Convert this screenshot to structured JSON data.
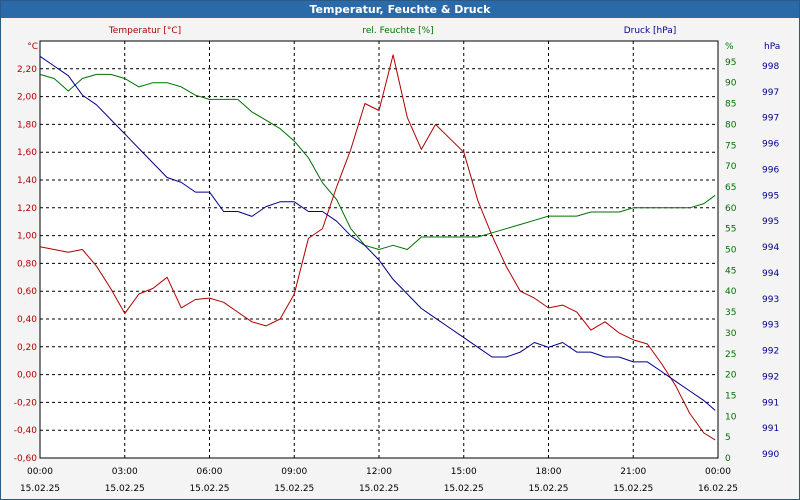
{
  "window": {
    "title": "Temperatur, Feuchte & Druck"
  },
  "colors": {
    "temperature": "#b00000",
    "humidity": "#007000",
    "pressure": "#00008c",
    "grid": "#000000",
    "background": "#ffffff"
  },
  "chart_data": {
    "type": "line",
    "title": "Temperatur, Feuchte & Druck",
    "grid": true,
    "x_tick_labels": [
      [
        "00:00",
        "15.02.25"
      ],
      [
        "03:00",
        "15.02.25"
      ],
      [
        "06:00",
        "15.02.25"
      ],
      [
        "09:00",
        "15.02.25"
      ],
      [
        "12:00",
        "15.02.25"
      ],
      [
        "15:00",
        "15.02.25"
      ],
      [
        "18:00",
        "15.02.25"
      ],
      [
        "21:00",
        "15.02.25"
      ],
      [
        "00:00",
        "16.02.25"
      ]
    ],
    "xlim": [
      "15.02.25 00:00",
      "16.02.25 00:00"
    ],
    "axes": {
      "left": {
        "label": "Temperatur [°C]",
        "unit": "°C",
        "ylim": [
          -0.6,
          2.4
        ],
        "ticks": [
          "2,20",
          "2,00",
          "1,80",
          "1,60",
          "1,40",
          "1,20",
          "1,00",
          "0,80",
          "0,60",
          "0,40",
          "0,20",
          "0,00",
          "-0,20",
          "-0,40",
          "-0,60"
        ]
      },
      "right1": {
        "label": "rel. Feuchte [%]",
        "unit": "%",
        "ylim": [
          0,
          100
        ],
        "ticks": [
          "95",
          "90",
          "85",
          "80",
          "75",
          "70",
          "65",
          "60",
          "55",
          "50",
          "45",
          "40",
          "35",
          "30",
          "25",
          "20",
          "15",
          "10",
          "5",
          "0"
        ]
      },
      "right2": {
        "label": "Druck [hPa]",
        "unit": "hPa",
        "ticks": [
          "998",
          "997",
          "997",
          "996",
          "996",
          "995",
          "995",
          "994",
          "994",
          "993",
          "993",
          "992",
          "992",
          "991",
          "991",
          "990"
        ]
      }
    },
    "x_hours": [
      0,
      0.5,
      1,
      1.5,
      2,
      2.5,
      3,
      3.5,
      4,
      4.5,
      5,
      5.5,
      6,
      6.5,
      7,
      7.5,
      8,
      8.5,
      9,
      9.5,
      10,
      10.5,
      11,
      11.5,
      12,
      12.5,
      13,
      13.5,
      14,
      14.5,
      15,
      15.5,
      16,
      16.5,
      17,
      17.5,
      18,
      18.5,
      19,
      19.5,
      20,
      20.5,
      21,
      21.5,
      22,
      22.5,
      23,
      23.5,
      23.9
    ],
    "series": [
      {
        "name": "Temperatur [°C]",
        "axis": "left",
        "values": [
          0.92,
          0.9,
          0.88,
          0.9,
          0.78,
          0.62,
          0.44,
          0.58,
          0.62,
          0.7,
          0.48,
          0.54,
          0.55,
          0.52,
          0.45,
          0.38,
          0.35,
          0.4,
          0.58,
          0.98,
          1.05,
          1.35,
          1.62,
          1.95,
          1.9,
          2.3,
          1.85,
          1.62,
          1.8,
          1.7,
          1.6,
          1.25,
          1.0,
          0.78,
          0.6,
          0.55,
          0.48,
          0.5,
          0.45,
          0.32,
          0.38,
          0.3,
          0.25,
          0.22,
          0.08,
          -0.08,
          -0.28,
          -0.42,
          -0.47
        ]
      },
      {
        "name": "rel. Feuchte [%]",
        "axis": "right1",
        "values": [
          92,
          91,
          88,
          91,
          92,
          92,
          91,
          89,
          90,
          90,
          89,
          87,
          86,
          86,
          86,
          83,
          81,
          79,
          76,
          72,
          66,
          62,
          55,
          51,
          50,
          51,
          50,
          53,
          53,
          53,
          53,
          53,
          54,
          55,
          56,
          57,
          58,
          58,
          58,
          59,
          59,
          59,
          60,
          60,
          60,
          60,
          60,
          61,
          63
        ]
      },
      {
        "name": "Druck [hPa]",
        "axis": "right2",
        "values": [
          998.2,
          998.0,
          997.8,
          997.4,
          997.2,
          996.9,
          996.6,
          996.3,
          996.0,
          995.7,
          995.6,
          995.4,
          995.4,
          995.0,
          995.0,
          994.9,
          995.1,
          995.2,
          995.2,
          995.0,
          995.0,
          994.8,
          994.5,
          994.3,
          994.0,
          993.6,
          993.3,
          993.0,
          992.8,
          992.6,
          992.4,
          992.2,
          992.0,
          992.0,
          992.1,
          992.3,
          992.2,
          992.3,
          992.1,
          992.1,
          992.0,
          992.0,
          991.9,
          991.9,
          991.7,
          991.5,
          991.3,
          991.1,
          990.9
        ]
      }
    ]
  }
}
